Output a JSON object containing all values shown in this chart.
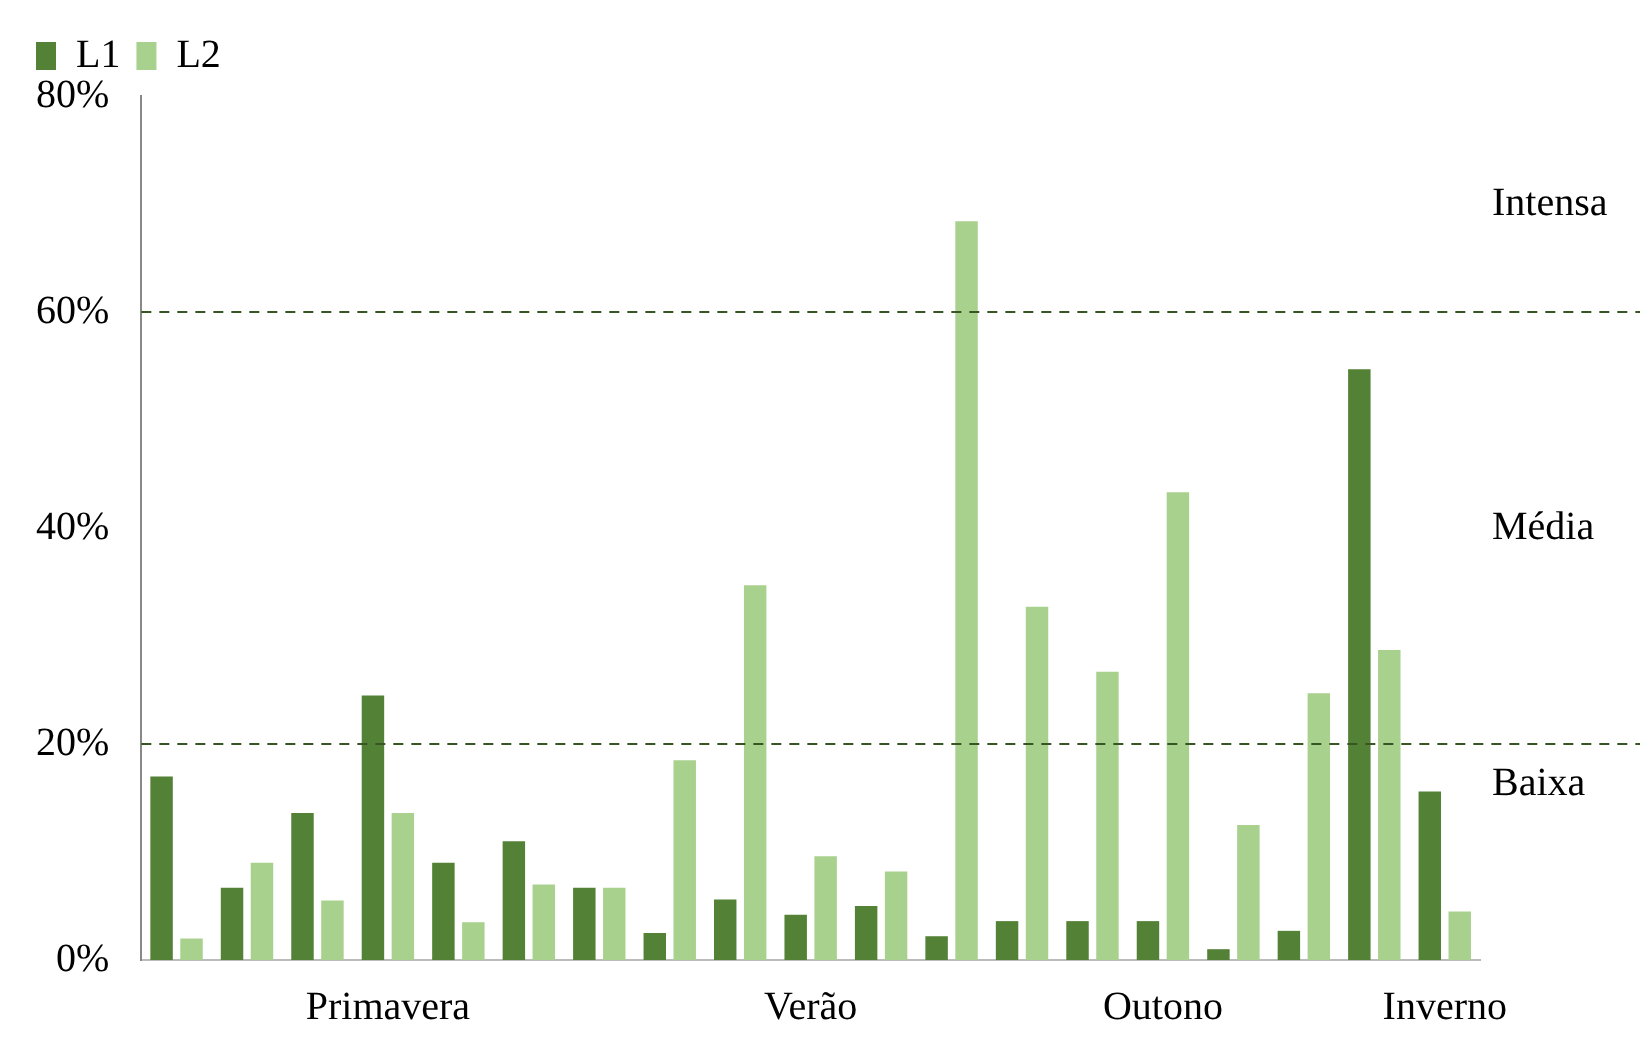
{
  "chart_data": {
    "type": "bar",
    "categories": [
      null,
      null,
      null,
      "Primavera",
      null,
      null,
      null,
      null,
      null,
      "Verão",
      null,
      null,
      null,
      null,
      "Outono",
      null,
      null,
      null,
      "Inverno"
    ],
    "series": [
      {
        "name": "L1",
        "color": "#538135",
        "values": [
          17,
          6.7,
          13.6,
          24.5,
          9,
          11,
          6.7,
          2.5,
          5.6,
          4.2,
          5,
          2.2,
          3.6,
          3.6,
          3.6,
          1,
          2.7,
          54.7,
          15.6
        ]
      },
      {
        "name": "L2",
        "color": "#a9d18e",
        "values": [
          2,
          9,
          5.5,
          13.6,
          3.5,
          7,
          6.7,
          18.5,
          34.7,
          9.6,
          8.2,
          68.4,
          32.7,
          26.7,
          43.3,
          12.5,
          24.7,
          28.7,
          4.5
        ]
      }
    ],
    "ylim": [
      0,
      80
    ],
    "yticks": [
      {
        "value": 0,
        "label": "0%"
      },
      {
        "value": 20,
        "label": "20%"
      },
      {
        "value": 40,
        "label": "40%"
      },
      {
        "value": 60,
        "label": "60%"
      },
      {
        "value": 80,
        "label": "80%"
      }
    ],
    "grid": false,
    "legend": "top left",
    "ref_lines": [
      {
        "axis": "y",
        "value": 20,
        "color": "#375623",
        "line_style": "dashed"
      },
      {
        "axis": "y",
        "value": 60,
        "color": "#375623",
        "line_style": "dashed"
      }
    ],
    "annotations": [
      "Baixa",
      "Média",
      "Intensa"
    ]
  }
}
